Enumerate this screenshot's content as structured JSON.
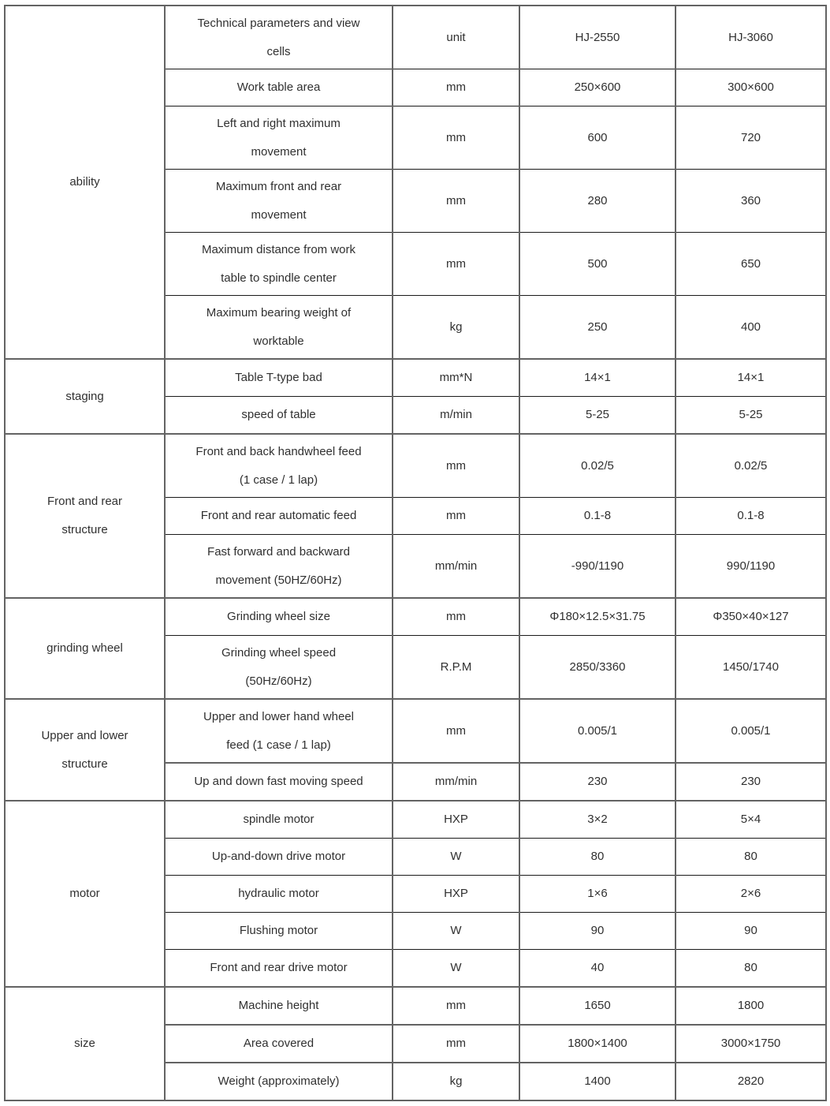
{
  "table": {
    "columns": [
      "category",
      "parameter",
      "unit",
      "model-1",
      "model-2"
    ],
    "models": [
      "HJ-2550",
      "HJ-3060"
    ],
    "groups": [
      {
        "category": "ability",
        "rows": [
          {
            "parameter": "Technical parameters and view\ncells",
            "unit": "unit",
            "v1": "HJ-2550",
            "v2": "HJ-3060",
            "tall": true,
            "divider": "thin",
            "header": true
          },
          {
            "parameter": "Work table area",
            "unit": "mm",
            "v1": "250×600",
            "v2": "300×600",
            "tall": false,
            "divider": "thin"
          },
          {
            "parameter": "Left and right maximum\nmovement",
            "unit": "mm",
            "v1": "600",
            "v2": "720",
            "tall": true,
            "divider": "thin"
          },
          {
            "parameter": "Maximum front and rear\nmovement",
            "unit": "mm",
            "v1": "280",
            "v2": "360",
            "tall": true,
            "divider": "thin"
          },
          {
            "parameter": "Maximum distance from work\ntable to spindle center",
            "unit": "mm",
            "v1": "500",
            "v2": "650",
            "tall": true,
            "divider": "thin"
          },
          {
            "parameter": "Maximum bearing weight of\nworktable",
            "unit": "kg",
            "v1": "250",
            "v2": "400",
            "tall": true
          }
        ]
      },
      {
        "category": "staging",
        "rows": [
          {
            "parameter": "Table T-type bad",
            "unit": "mm*N",
            "v1": "14×1",
            "v2": "14×1",
            "tall": false,
            "divider": "thin"
          },
          {
            "parameter": "speed of table",
            "unit": "m/min",
            "v1": "5-25",
            "v2": "5-25",
            "tall": false
          }
        ]
      },
      {
        "category": "Front and rear\nstructure",
        "rows": [
          {
            "parameter": "Front and back handwheel feed\n(1 case / 1 lap)",
            "unit": "mm",
            "v1": "0.02/5",
            "v2": "0.02/5",
            "tall": true,
            "divider": "thin"
          },
          {
            "parameter": "Front and rear automatic feed",
            "unit": "mm",
            "v1": "0.1-8",
            "v2": "0.1-8",
            "tall": false,
            "divider": "thin"
          },
          {
            "parameter": "Fast forward and backward\nmovement (50HZ/60Hz)",
            "unit": "mm/min",
            "v1": "-990/1190",
            "v2": "990/1190",
            "tall": true
          }
        ]
      },
      {
        "category": "grinding wheel",
        "rows": [
          {
            "parameter": "Grinding wheel size",
            "unit": "mm",
            "v1": "Φ180×12.5×31.75",
            "v2": "Φ350×40×127",
            "tall": false,
            "divider": "thin"
          },
          {
            "parameter": "Grinding wheel speed\n(50Hz/60Hz)",
            "unit": "R.P.M",
            "v1": "2850/3360",
            "v2": "1450/1740",
            "tall": true
          }
        ]
      },
      {
        "category": "Upper and lower\nstructure",
        "rows": [
          {
            "parameter": "Upper and lower hand wheel\nfeed (1 case / 1 lap)",
            "unit": "mm",
            "v1": "0.005/1",
            "v2": "0.005/1",
            "tall": true,
            "divider": "thick"
          },
          {
            "parameter": "Up and down fast moving speed",
            "unit": "mm/min",
            "v1": "230",
            "v2": "230",
            "tall": false
          }
        ]
      },
      {
        "category": "motor",
        "rows": [
          {
            "parameter": "spindle motor",
            "unit": "HXP",
            "v1": "3×2",
            "v2": "5×4",
            "tall": false,
            "divider": "thin"
          },
          {
            "parameter": "Up-and-down drive motor",
            "unit": "W",
            "v1": "80",
            "v2": "80",
            "tall": false,
            "divider": "thin"
          },
          {
            "parameter": "hydraulic motor",
            "unit": "HXP",
            "v1": "1×6",
            "v2": "2×6",
            "tall": false,
            "divider": "thin"
          },
          {
            "parameter": "Flushing motor",
            "unit": "W",
            "v1": "90",
            "v2": "90",
            "tall": false,
            "divider": "thin"
          },
          {
            "parameter": "Front and rear drive motor",
            "unit": "W",
            "v1": "40",
            "v2": "80",
            "tall": false
          }
        ]
      },
      {
        "category": "size",
        "rows": [
          {
            "parameter": "Machine height",
            "unit": "mm",
            "v1": "1650",
            "v2": "1800",
            "tall": false,
            "divider": "thick"
          },
          {
            "parameter": "Area covered",
            "unit": "mm",
            "v1": "1800×1400",
            "v2": "3000×1750",
            "tall": false,
            "divider": "thick"
          },
          {
            "parameter": "Weight (approximately)",
            "unit": "kg",
            "v1": "1400",
            "v2": "2820",
            "tall": false
          }
        ]
      }
    ]
  }
}
